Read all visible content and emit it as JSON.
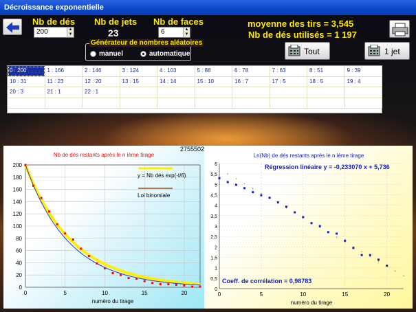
{
  "window": {
    "title": "Décroissance exponentielle"
  },
  "header": {
    "nb_des_label": "Nb de dés",
    "nb_des_value": "200",
    "nb_jets_label": "Nb de jets",
    "nb_jets_value": "23",
    "nb_faces_label": "Nb de faces",
    "nb_faces_value": "6",
    "moyenne": "moyenne des tirs = 3,545",
    "nb_utilises": "Nb de dés utilisés = 1 197"
  },
  "generator": {
    "title": "Générateur de nombres aléatoires",
    "manuel": "manuel",
    "automatique": "automatique",
    "selected": "automatique"
  },
  "buttons": {
    "tout": "Tout",
    "un_jet": "1 jet"
  },
  "table": {
    "rows": [
      [
        "0 : 200",
        "1 : 166",
        "2 : 146",
        "3 : 124",
        "4 : 103",
        "5 : 88",
        "6 : 78",
        "7 : 63",
        "8 : 51",
        "9 : 39"
      ],
      [
        "10 : 31",
        "11 : 23",
        "12 : 20",
        "13 : 15",
        "14 : 14",
        "15 : 10",
        "16 : 7",
        "17 : 5",
        "18 : 5",
        "19 : 4"
      ],
      [
        "20 : 3",
        "21 : 1",
        "22 : 1",
        "",
        "",
        "",
        "",
        "",
        "",
        ""
      ],
      [
        "",
        "",
        "",
        "",
        "",
        "",
        "",
        "",
        "",
        ""
      ]
    ],
    "selected": "0 : 200"
  },
  "seed": "2755502",
  "chart_data": [
    {
      "type": "scatter",
      "title": "Nb de dés restants après le n ième tirage",
      "xlabel": "numéro du tirage",
      "ylabel": "",
      "xlim": [
        0,
        22
      ],
      "ylim": [
        0,
        200
      ],
      "xticks": [
        0,
        5,
        10,
        15,
        20
      ],
      "yticks": [
        0,
        20,
        40,
        60,
        80,
        100,
        120,
        140,
        160,
        180,
        200
      ],
      "legend": [
        "y = Nb dés exp(-t/6)",
        "Loi binomiale"
      ],
      "series": [
        {
          "name": "",
          "x": [
            0,
            1,
            2,
            3,
            4,
            5,
            6,
            7,
            8,
            9,
            10,
            11,
            12,
            13,
            14,
            15,
            16,
            17,
            18,
            19,
            20,
            21,
            22
          ],
          "values": [
            200,
            166,
            146,
            124,
            103,
            88,
            78,
            63,
            51,
            39,
            31,
            23,
            20,
            15,
            14,
            10,
            7,
            5,
            5,
            4,
            3,
            1,
            1
          ]
        },
        {
          "name": "y = Nb dés exp(-t/6)",
          "function": "200*exp(-t/6)"
        },
        {
          "name": "Loi binomiale",
          "function": "200*(5/6)^t"
        }
      ],
      "colors": {
        "points": "#ff0000",
        "exp": "#ffee00",
        "binomial": "#2040c0"
      }
    },
    {
      "type": "scatter",
      "title": "Ln(Nb) de dés restants après le n ième tirage",
      "annotation": "Régression linéaire y = -0,233070 x + 5,736",
      "correlation": "Coeff. de corrélation = 0,98783",
      "xlabel": "numéro du tirage",
      "ylabel": "",
      "xlim": [
        0,
        22
      ],
      "ylim": [
        0,
        6
      ],
      "xticks": [
        0,
        5,
        10,
        15,
        20
      ],
      "yticks": [
        0,
        0.5,
        1,
        1.5,
        2,
        2.5,
        3,
        3.5,
        4,
        4.5,
        5,
        5.5,
        6
      ],
      "ytick_labels": [
        "0",
        "0,5",
        "1",
        "1,5",
        "2",
        "2,5",
        "3",
        "3,5",
        "4",
        "4,5",
        "5",
        "5,5",
        "6"
      ],
      "series": [
        {
          "name": "",
          "x": [
            0,
            1,
            2,
            3,
            4,
            5,
            6,
            7,
            8,
            9,
            10,
            11,
            12,
            13,
            14,
            15,
            16,
            17,
            18,
            19,
            20
          ],
          "values": [
            5.3,
            5.11,
            4.98,
            4.82,
            4.63,
            4.48,
            4.36,
            4.14,
            3.93,
            3.66,
            3.43,
            3.14,
            3.0,
            2.71,
            2.64,
            2.3,
            1.95,
            1.61,
            1.61,
            1.39,
            1.1
          ]
        },
        {
          "name": "",
          "slope": -0.23307,
          "intercept": 5.736
        }
      ],
      "colors": {
        "points": "#1020c0",
        "regression": "#8a6a00"
      }
    }
  ]
}
